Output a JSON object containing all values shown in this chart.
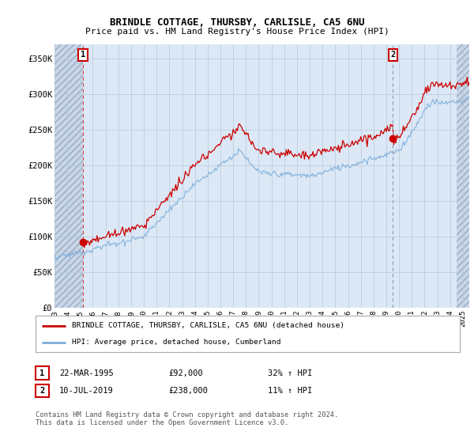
{
  "title1": "BRINDLE COTTAGE, THURSBY, CARLISLE, CA5 6NU",
  "title2": "Price paid vs. HM Land Registry's House Price Index (HPI)",
  "ylabel_ticks": [
    "£0",
    "£50K",
    "£100K",
    "£150K",
    "£200K",
    "£250K",
    "£300K",
    "£350K"
  ],
  "ytick_vals": [
    0,
    50000,
    100000,
    150000,
    200000,
    250000,
    300000,
    350000
  ],
  "ylim": [
    0,
    370000
  ],
  "xlim_start": 1993.0,
  "xlim_end": 2025.5,
  "transaction1_date": 1995.22,
  "transaction1_price": 92000,
  "transaction1_label": "1",
  "transaction2_date": 2019.52,
  "transaction2_price": 238000,
  "transaction2_label": "2",
  "hpi_line_color": "#7aaddb",
  "sale_line_color": "#cc0000",
  "dashed_line_color1": "#dd4444",
  "dashed_line_color2": "#8899bb",
  "background_plot": "#dce8f5",
  "background_hatch_color": "#c8d6e8",
  "grid_color": "#b8c8dc",
  "legend_label1": "BRINDLE COTTAGE, THURSBY, CARLISLE, CA5 6NU (detached house)",
  "legend_label2": "HPI: Average price, detached house, Cumberland",
  "info1_date": "22-MAR-1995",
  "info1_price": "£92,000",
  "info1_hpi": "32% ↑ HPI",
  "info2_date": "10-JUL-2019",
  "info2_price": "£238,000",
  "info2_hpi": "11% ↑ HPI",
  "footer": "Contains HM Land Registry data © Crown copyright and database right 2024.\nThis data is licensed under the Open Government Licence v3.0.",
  "xtick_years": [
    1993,
    1994,
    1995,
    1996,
    1997,
    1998,
    1999,
    2000,
    2001,
    2002,
    2003,
    2004,
    2005,
    2006,
    2007,
    2008,
    2009,
    2010,
    2011,
    2012,
    2013,
    2014,
    2015,
    2016,
    2017,
    2018,
    2019,
    2020,
    2021,
    2022,
    2023,
    2024,
    2025
  ],
  "hatch_right_start": 2024.5,
  "t1": 1995.22,
  "p1": 92000,
  "t2": 2019.52,
  "p2": 238000
}
